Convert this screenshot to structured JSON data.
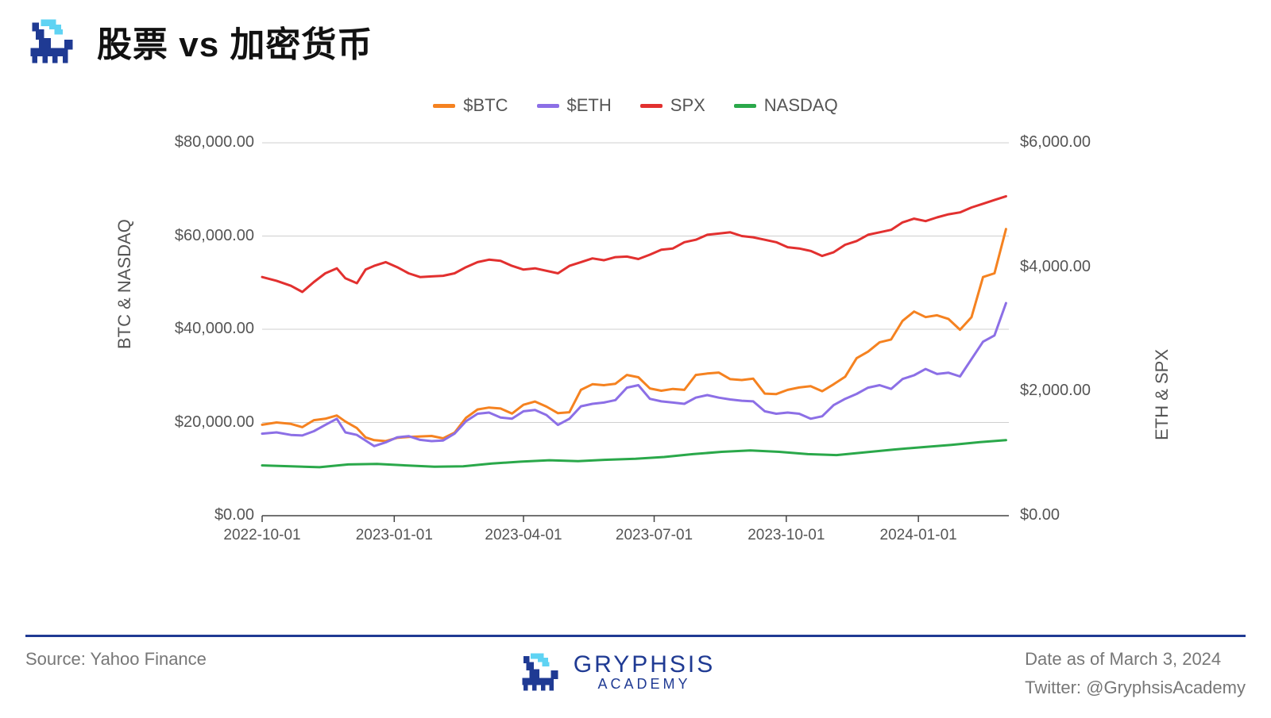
{
  "title": "股票 vs 加密货币",
  "brand": {
    "name": "GRYPHSIS",
    "sub": "ACADEMY"
  },
  "footer": {
    "source": "Source: Yahoo Finance",
    "date": "Date as of March 3, 2024",
    "twitter": "Twitter: @GryphsisAcademy"
  },
  "legend": [
    {
      "label": "$BTC",
      "color": "#f58220"
    },
    {
      "label": "$ETH",
      "color": "#8c6fe6"
    },
    {
      "label": "SPX",
      "color": "#e2302f"
    },
    {
      "label": "NASDAQ",
      "color": "#2aa84a"
    }
  ],
  "chart": {
    "type": "line",
    "background_color": "#ffffff",
    "grid_color": "#cfcfcf",
    "axis_color": "#444444",
    "line_width": 3,
    "title_fontsize": 44,
    "tick_fontsize": 20,
    "label_fontsize": 22,
    "x": {
      "domain": [
        0,
        520
      ],
      "ticks": [
        {
          "pos": 0,
          "label": "2022-10-01"
        },
        {
          "pos": 92,
          "label": "2023-01-01"
        },
        {
          "pos": 182,
          "label": "2023-04-01"
        },
        {
          "pos": 273,
          "label": "2023-07-01"
        },
        {
          "pos": 365,
          "label": "2023-10-01"
        },
        {
          "pos": 457,
          "label": "2024-01-01"
        }
      ]
    },
    "y_left": {
      "label": "BTC & NASDAQ",
      "domain": [
        0,
        80000
      ],
      "ticks": [
        {
          "v": 0,
          "label": "$0.00"
        },
        {
          "v": 20000,
          "label": "$20,000.00"
        },
        {
          "v": 40000,
          "label": "$40,000.00"
        },
        {
          "v": 60000,
          "label": "$60,000.00"
        },
        {
          "v": 80000,
          "label": "$80,000.00"
        }
      ]
    },
    "y_right": {
      "label": "ETH & SPX",
      "domain": [
        0,
        6000
      ],
      "ticks": [
        {
          "v": 0,
          "label": "$0.00"
        },
        {
          "v": 2000,
          "label": "$2,000.00"
        },
        {
          "v": 4000,
          "label": "$4,000.00"
        },
        {
          "v": 6000,
          "label": "$6,000.00"
        }
      ]
    },
    "series": [
      {
        "name": "$BTC",
        "axis": "left",
        "color": "#f58220",
        "points": [
          [
            0,
            19500
          ],
          [
            10,
            20000
          ],
          [
            20,
            19700
          ],
          [
            28,
            19000
          ],
          [
            36,
            20500
          ],
          [
            44,
            20800
          ],
          [
            52,
            21500
          ],
          [
            58,
            20200
          ],
          [
            66,
            18800
          ],
          [
            72,
            16800
          ],
          [
            78,
            16200
          ],
          [
            86,
            16000
          ],
          [
            94,
            16700
          ],
          [
            102,
            16900
          ],
          [
            110,
            17000
          ],
          [
            118,
            17100
          ],
          [
            126,
            16600
          ],
          [
            134,
            17800
          ],
          [
            142,
            21000
          ],
          [
            150,
            22800
          ],
          [
            158,
            23200
          ],
          [
            166,
            23000
          ],
          [
            174,
            21900
          ],
          [
            182,
            23800
          ],
          [
            190,
            24500
          ],
          [
            198,
            23400
          ],
          [
            206,
            22000
          ],
          [
            214,
            22200
          ],
          [
            222,
            27000
          ],
          [
            230,
            28200
          ],
          [
            238,
            28000
          ],
          [
            246,
            28300
          ],
          [
            254,
            30200
          ],
          [
            262,
            29700
          ],
          [
            270,
            27300
          ],
          [
            278,
            26800
          ],
          [
            286,
            27200
          ],
          [
            294,
            27000
          ],
          [
            302,
            30200
          ],
          [
            310,
            30500
          ],
          [
            318,
            30700
          ],
          [
            326,
            29300
          ],
          [
            334,
            29100
          ],
          [
            342,
            29400
          ],
          [
            350,
            26200
          ],
          [
            358,
            26100
          ],
          [
            366,
            27000
          ],
          [
            374,
            27500
          ],
          [
            382,
            27800
          ],
          [
            390,
            26700
          ],
          [
            398,
            28200
          ],
          [
            406,
            29800
          ],
          [
            414,
            33800
          ],
          [
            422,
            35200
          ],
          [
            430,
            37200
          ],
          [
            438,
            37800
          ],
          [
            446,
            41800
          ],
          [
            454,
            43800
          ],
          [
            462,
            42600
          ],
          [
            470,
            43000
          ],
          [
            478,
            42200
          ],
          [
            486,
            39900
          ],
          [
            494,
            42600
          ],
          [
            502,
            51200
          ],
          [
            510,
            52000
          ],
          [
            518,
            61500
          ]
        ]
      },
      {
        "name": "$ETH",
        "axis": "right",
        "color": "#8c6fe6",
        "points": [
          [
            0,
            1320
          ],
          [
            10,
            1340
          ],
          [
            20,
            1300
          ],
          [
            28,
            1290
          ],
          [
            36,
            1360
          ],
          [
            44,
            1460
          ],
          [
            52,
            1560
          ],
          [
            58,
            1340
          ],
          [
            66,
            1300
          ],
          [
            72,
            1210
          ],
          [
            78,
            1120
          ],
          [
            86,
            1180
          ],
          [
            94,
            1260
          ],
          [
            102,
            1280
          ],
          [
            110,
            1220
          ],
          [
            118,
            1200
          ],
          [
            126,
            1210
          ],
          [
            134,
            1320
          ],
          [
            142,
            1520
          ],
          [
            150,
            1640
          ],
          [
            158,
            1660
          ],
          [
            166,
            1580
          ],
          [
            174,
            1560
          ],
          [
            182,
            1680
          ],
          [
            190,
            1700
          ],
          [
            198,
            1620
          ],
          [
            206,
            1460
          ],
          [
            214,
            1560
          ],
          [
            222,
            1760
          ],
          [
            230,
            1800
          ],
          [
            238,
            1820
          ],
          [
            246,
            1860
          ],
          [
            254,
            2060
          ],
          [
            262,
            2100
          ],
          [
            270,
            1880
          ],
          [
            278,
            1840
          ],
          [
            286,
            1820
          ],
          [
            294,
            1800
          ],
          [
            302,
            1900
          ],
          [
            310,
            1940
          ],
          [
            318,
            1900
          ],
          [
            326,
            1870
          ],
          [
            334,
            1850
          ],
          [
            342,
            1840
          ],
          [
            350,
            1680
          ],
          [
            358,
            1640
          ],
          [
            366,
            1660
          ],
          [
            374,
            1640
          ],
          [
            382,
            1560
          ],
          [
            390,
            1600
          ],
          [
            398,
            1780
          ],
          [
            406,
            1880
          ],
          [
            414,
            1960
          ],
          [
            422,
            2060
          ],
          [
            430,
            2100
          ],
          [
            438,
            2040
          ],
          [
            446,
            2200
          ],
          [
            454,
            2260
          ],
          [
            462,
            2360
          ],
          [
            470,
            2280
          ],
          [
            478,
            2300
          ],
          [
            486,
            2240
          ],
          [
            494,
            2520
          ],
          [
            502,
            2800
          ],
          [
            510,
            2900
          ],
          [
            518,
            3420
          ]
        ]
      },
      {
        "name": "SPX",
        "axis": "right",
        "color": "#e2302f",
        "points": [
          [
            0,
            3840
          ],
          [
            10,
            3780
          ],
          [
            20,
            3700
          ],
          [
            28,
            3600
          ],
          [
            36,
            3760
          ],
          [
            44,
            3900
          ],
          [
            52,
            3980
          ],
          [
            58,
            3820
          ],
          [
            66,
            3740
          ],
          [
            72,
            3960
          ],
          [
            78,
            4020
          ],
          [
            86,
            4080
          ],
          [
            94,
            4000
          ],
          [
            102,
            3900
          ],
          [
            110,
            3840
          ],
          [
            118,
            3850
          ],
          [
            126,
            3860
          ],
          [
            134,
            3900
          ],
          [
            142,
            4000
          ],
          [
            150,
            4080
          ],
          [
            158,
            4120
          ],
          [
            166,
            4100
          ],
          [
            174,
            4020
          ],
          [
            182,
            3960
          ],
          [
            190,
            3980
          ],
          [
            206,
            3900
          ],
          [
            214,
            4020
          ],
          [
            222,
            4080
          ],
          [
            230,
            4140
          ],
          [
            238,
            4110
          ],
          [
            246,
            4160
          ],
          [
            254,
            4170
          ],
          [
            262,
            4130
          ],
          [
            270,
            4200
          ],
          [
            278,
            4280
          ],
          [
            286,
            4300
          ],
          [
            294,
            4400
          ],
          [
            302,
            4440
          ],
          [
            310,
            4520
          ],
          [
            318,
            4540
          ],
          [
            326,
            4560
          ],
          [
            334,
            4500
          ],
          [
            342,
            4480
          ],
          [
            350,
            4440
          ],
          [
            358,
            4400
          ],
          [
            366,
            4320
          ],
          [
            374,
            4300
          ],
          [
            382,
            4260
          ],
          [
            390,
            4180
          ],
          [
            398,
            4240
          ],
          [
            406,
            4360
          ],
          [
            414,
            4420
          ],
          [
            422,
            4520
          ],
          [
            430,
            4560
          ],
          [
            438,
            4600
          ],
          [
            446,
            4720
          ],
          [
            454,
            4780
          ],
          [
            462,
            4740
          ],
          [
            470,
            4800
          ],
          [
            478,
            4850
          ],
          [
            486,
            4880
          ],
          [
            494,
            4960
          ],
          [
            502,
            5020
          ],
          [
            510,
            5080
          ],
          [
            518,
            5140
          ]
        ]
      },
      {
        "name": "NASDAQ",
        "axis": "left",
        "color": "#2aa84a",
        "points": [
          [
            0,
            10800
          ],
          [
            20,
            10600
          ],
          [
            40,
            10400
          ],
          [
            60,
            11000
          ],
          [
            80,
            11100
          ],
          [
            100,
            10800
          ],
          [
            120,
            10500
          ],
          [
            140,
            10600
          ],
          [
            160,
            11200
          ],
          [
            180,
            11600
          ],
          [
            200,
            11900
          ],
          [
            220,
            11700
          ],
          [
            240,
            12000
          ],
          [
            260,
            12200
          ],
          [
            280,
            12600
          ],
          [
            300,
            13200
          ],
          [
            320,
            13700
          ],
          [
            340,
            14000
          ],
          [
            360,
            13700
          ],
          [
            380,
            13200
          ],
          [
            400,
            13000
          ],
          [
            420,
            13600
          ],
          [
            440,
            14200
          ],
          [
            460,
            14700
          ],
          [
            480,
            15200
          ],
          [
            500,
            15800
          ],
          [
            518,
            16200
          ]
        ]
      }
    ]
  },
  "logo_colors": {
    "body": "#1f3a93",
    "accent": "#5fd3f3"
  }
}
